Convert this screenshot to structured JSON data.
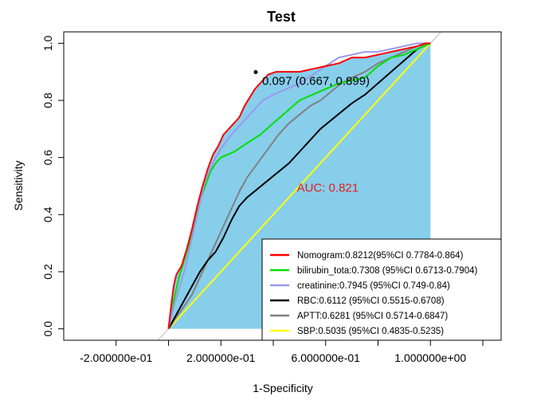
{
  "chart_data": {
    "type": "line",
    "title": "Test",
    "xlabel": "1-Specificity",
    "ylabel": "Sensitivity",
    "xlim": [
      -0.4,
      1.27
    ],
    "ylim": [
      -0.04,
      1.04
    ],
    "x_ticks": [
      -0.2,
      0.2,
      0.6,
      1.0
    ],
    "x_tick_labels": [
      "-2.000000e-01",
      "2.000000e-01",
      "6.000000e-01",
      "1.000000e+00"
    ],
    "x_minor_ticks": [
      0,
      0.4,
      0.8,
      1.2
    ],
    "y_ticks": [
      0.0,
      0.2,
      0.4,
      0.6,
      0.8,
      1.0
    ],
    "y_tick_labels": [
      "0.0",
      "0.2",
      "0.4",
      "0.6",
      "0.8",
      "1.0"
    ],
    "grid": false,
    "legend_position": "bottom-right",
    "auc_fill_color": "#87CEEB",
    "auc_label": "AUC: 0.821",
    "auc_label_color": "#E41A1C",
    "auc_label_pos": [
      0.49,
      0.48
    ],
    "best_threshold_point": [
      0.667,
      0.899
    ],
    "best_threshold_label": "0.097 (0.667, 0.899)",
    "diagonal_color": "#bdbdbd",
    "series": [
      {
        "name": "Nomogram:0.8212(95%CI 0.7784-0.864)",
        "color": "#FF0000",
        "x": [
          0.0,
          0.01,
          0.02,
          0.03,
          0.05,
          0.07,
          0.09,
          0.11,
          0.13,
          0.15,
          0.17,
          0.19,
          0.21,
          0.23,
          0.25,
          0.27,
          0.29,
          0.31,
          0.33,
          0.35,
          0.38,
          0.41,
          0.45,
          0.5,
          0.55,
          0.6,
          0.65,
          0.7,
          0.75,
          0.8,
          0.85,
          0.9,
          0.95,
          0.98,
          1.0
        ],
        "y": [
          0.0,
          0.08,
          0.15,
          0.19,
          0.22,
          0.28,
          0.35,
          0.43,
          0.5,
          0.56,
          0.61,
          0.64,
          0.68,
          0.7,
          0.72,
          0.74,
          0.78,
          0.81,
          0.84,
          0.86,
          0.89,
          0.9,
          0.9,
          0.9,
          0.91,
          0.92,
          0.93,
          0.95,
          0.95,
          0.96,
          0.97,
          0.98,
          0.99,
          1.0,
          1.0
        ]
      },
      {
        "name": "bilirubin_tota:0.7308 (95%CI 0.6713-0.7904)",
        "color": "#00E000",
        "x": [
          0.0,
          0.02,
          0.04,
          0.06,
          0.08,
          0.1,
          0.12,
          0.14,
          0.16,
          0.18,
          0.2,
          0.25,
          0.3,
          0.35,
          0.4,
          0.45,
          0.5,
          0.55,
          0.6,
          0.65,
          0.7,
          0.75,
          0.8,
          0.85,
          0.9,
          0.95,
          1.0
        ],
        "y": [
          0.0,
          0.1,
          0.18,
          0.24,
          0.3,
          0.38,
          0.45,
          0.5,
          0.55,
          0.58,
          0.6,
          0.62,
          0.65,
          0.68,
          0.72,
          0.76,
          0.8,
          0.82,
          0.84,
          0.86,
          0.87,
          0.88,
          0.92,
          0.95,
          0.96,
          0.98,
          1.0
        ]
      },
      {
        "name": "creatinine:0.7945 (95%CI 0.749-0.84)",
        "color": "#9999EE",
        "x": [
          0.0,
          0.02,
          0.04,
          0.06,
          0.08,
          0.1,
          0.12,
          0.14,
          0.16,
          0.18,
          0.2,
          0.24,
          0.28,
          0.32,
          0.36,
          0.4,
          0.45,
          0.5,
          0.55,
          0.6,
          0.65,
          0.7,
          0.75,
          0.8,
          0.85,
          0.9,
          0.95,
          1.0
        ],
        "y": [
          0.0,
          0.08,
          0.14,
          0.2,
          0.28,
          0.36,
          0.44,
          0.52,
          0.56,
          0.6,
          0.63,
          0.68,
          0.72,
          0.76,
          0.8,
          0.82,
          0.84,
          0.86,
          0.89,
          0.92,
          0.95,
          0.96,
          0.97,
          0.97,
          0.98,
          0.99,
          1.0,
          1.0
        ]
      },
      {
        "name": "RBC:0.6112 (95%CI 0.5515-0.6708)",
        "color": "#000000",
        "x": [
          0.0,
          0.03,
          0.06,
          0.09,
          0.12,
          0.15,
          0.18,
          0.21,
          0.24,
          0.27,
          0.3,
          0.34,
          0.38,
          0.42,
          0.46,
          0.5,
          0.54,
          0.58,
          0.62,
          0.66,
          0.7,
          0.75,
          0.8,
          0.85,
          0.9,
          0.95,
          1.0
        ],
        "y": [
          0.0,
          0.05,
          0.1,
          0.15,
          0.2,
          0.24,
          0.27,
          0.32,
          0.38,
          0.43,
          0.46,
          0.49,
          0.52,
          0.55,
          0.58,
          0.62,
          0.66,
          0.7,
          0.73,
          0.76,
          0.79,
          0.82,
          0.86,
          0.9,
          0.94,
          0.98,
          1.0
        ]
      },
      {
        "name": "APTT:0.6281 (95%CI 0.5714-0.6847)",
        "color": "#808080",
        "x": [
          0.0,
          0.03,
          0.06,
          0.09,
          0.12,
          0.15,
          0.18,
          0.21,
          0.24,
          0.27,
          0.3,
          0.34,
          0.38,
          0.42,
          0.46,
          0.5,
          0.54,
          0.58,
          0.62,
          0.66,
          0.7,
          0.75,
          0.8,
          0.85,
          0.9,
          0.95,
          1.0
        ],
        "y": [
          0.0,
          0.04,
          0.08,
          0.12,
          0.18,
          0.24,
          0.3,
          0.36,
          0.42,
          0.48,
          0.53,
          0.58,
          0.63,
          0.68,
          0.72,
          0.75,
          0.78,
          0.8,
          0.83,
          0.86,
          0.88,
          0.9,
          0.93,
          0.95,
          0.97,
          0.99,
          1.0
        ]
      },
      {
        "name": "SBP:0.5035 (95%CI 0.4835-0.5235)",
        "color": "#FFFF00",
        "x": [
          0.0,
          0.04,
          0.1,
          0.2,
          0.3,
          0.4,
          0.5,
          0.6,
          0.7,
          0.8,
          0.9,
          1.0
        ],
        "y": [
          0.0,
          0.04,
          0.1,
          0.2,
          0.3,
          0.4,
          0.5,
          0.6,
          0.7,
          0.8,
          0.9,
          1.0
        ]
      }
    ]
  }
}
